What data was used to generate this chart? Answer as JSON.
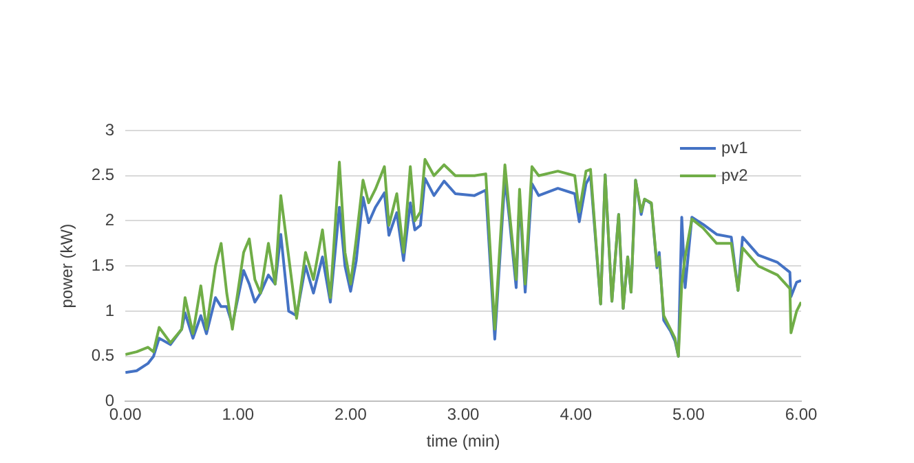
{
  "chart_data": {
    "type": "line",
    "xlabel": "time (min)",
    "ylabel": "power (kW)",
    "x": [
      0,
      0.1,
      0.2,
      0.25,
      0.3,
      0.4,
      0.5,
      0.53,
      0.6,
      0.67,
      0.72,
      0.8,
      0.85,
      0.9,
      0.95,
      1.05,
      1.1,
      1.15,
      1.2,
      1.27,
      1.33,
      1.38,
      1.45,
      1.52,
      1.6,
      1.67,
      1.75,
      1.82,
      1.9,
      1.95,
      2.0,
      2.05,
      2.11,
      2.16,
      2.22,
      2.3,
      2.34,
      2.41,
      2.47,
      2.53,
      2.57,
      2.62,
      2.66,
      2.74,
      2.83,
      2.93,
      3.1,
      3.2,
      3.28,
      3.37,
      3.41,
      3.47,
      3.5,
      3.55,
      3.61,
      3.67,
      3.84,
      3.99,
      4.03,
      4.09,
      4.13,
      4.22,
      4.26,
      4.32,
      4.38,
      4.42,
      4.46,
      4.49,
      4.53,
      4.58,
      4.61,
      4.67,
      4.72,
      4.74,
      4.78,
      4.84,
      4.88,
      4.91,
      4.94,
      4.97,
      5.03,
      5.13,
      5.25,
      5.38,
      5.44,
      5.48,
      5.62,
      5.79,
      5.9,
      5.91,
      5.96,
      6.0
    ],
    "series": [
      {
        "name": "pv1",
        "color": "#4472c4",
        "values": [
          0.32,
          0.34,
          0.42,
          0.5,
          0.7,
          0.63,
          0.8,
          0.98,
          0.7,
          0.95,
          0.75,
          1.15,
          1.05,
          1.05,
          0.85,
          1.45,
          1.3,
          1.1,
          1.2,
          1.4,
          1.3,
          1.85,
          1.0,
          0.95,
          1.5,
          1.2,
          1.6,
          1.1,
          2.15,
          1.5,
          1.22,
          1.56,
          2.26,
          1.98,
          2.15,
          2.31,
          1.84,
          2.09,
          1.56,
          2.2,
          1.9,
          1.95,
          2.47,
          2.28,
          2.44,
          2.3,
          2.28,
          2.34,
          0.69,
          2.47,
          2.02,
          1.26,
          2.26,
          1.21,
          2.41,
          2.28,
          2.36,
          2.3,
          1.99,
          2.41,
          2.5,
          1.08,
          2.51,
          1.11,
          2.07,
          1.03,
          1.6,
          1.21,
          2.45,
          2.07,
          2.24,
          2.19,
          1.48,
          1.65,
          0.9,
          0.78,
          0.67,
          0.5,
          2.04,
          1.26,
          2.04,
          1.96,
          1.85,
          1.82,
          1.23,
          1.82,
          1.62,
          1.54,
          1.43,
          1.16,
          1.32,
          1.34
        ]
      },
      {
        "name": "pv2",
        "color": "#70ad47",
        "values": [
          0.52,
          0.55,
          0.6,
          0.55,
          0.82,
          0.65,
          0.8,
          1.15,
          0.75,
          1.28,
          0.8,
          1.5,
          1.75,
          1.2,
          0.8,
          1.65,
          1.8,
          1.35,
          1.2,
          1.75,
          1.3,
          2.28,
          1.6,
          0.92,
          1.65,
          1.35,
          1.9,
          1.15,
          2.65,
          1.65,
          1.3,
          1.8,
          2.45,
          2.2,
          2.35,
          2.6,
          1.95,
          2.3,
          1.65,
          2.6,
          2.0,
          2.1,
          2.68,
          2.5,
          2.62,
          2.5,
          2.5,
          2.52,
          0.8,
          2.62,
          2.1,
          1.35,
          2.35,
          1.3,
          2.6,
          2.5,
          2.55,
          2.5,
          2.1,
          2.55,
          2.57,
          1.08,
          2.51,
          1.11,
          2.07,
          1.03,
          1.6,
          1.21,
          2.45,
          2.1,
          2.24,
          2.2,
          1.5,
          1.6,
          0.95,
          0.8,
          0.7,
          0.5,
          1.3,
          1.6,
          2.02,
          1.92,
          1.75,
          1.75,
          1.23,
          1.7,
          1.5,
          1.4,
          1.25,
          0.76,
          1.0,
          1.1
        ]
      }
    ],
    "xlim": [
      0,
      6
    ],
    "xticks": [
      {
        "value": 0,
        "label": "0.00"
      },
      {
        "value": 1,
        "label": "1.00"
      },
      {
        "value": 2,
        "label": "2.00"
      },
      {
        "value": 3,
        "label": "3.00"
      },
      {
        "value": 4,
        "label": "4.00"
      },
      {
        "value": 5,
        "label": "5.00"
      },
      {
        "value": 6,
        "label": "6.00"
      }
    ],
    "ylim": [
      0,
      3
    ],
    "yticks": [
      0,
      0.5,
      1,
      1.5,
      2,
      2.5,
      3
    ],
    "grid": "y",
    "legend": "top right",
    "marker": "none",
    "line_style": "solid"
  }
}
